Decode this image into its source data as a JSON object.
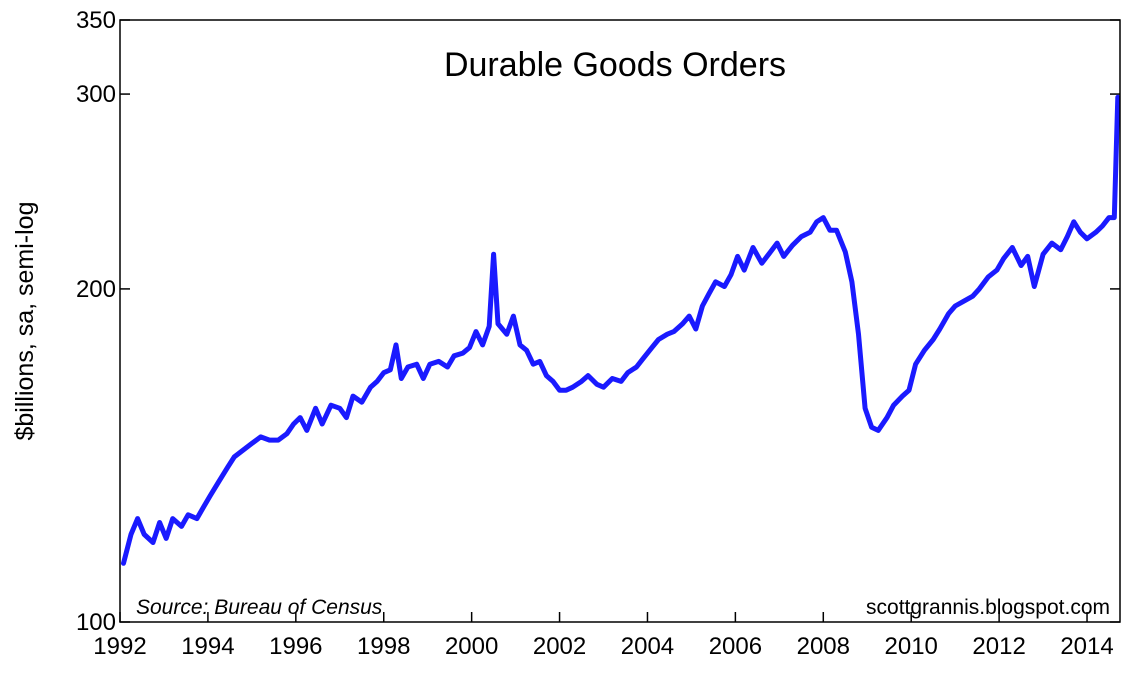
{
  "chart_data": {
    "type": "line",
    "title": "Durable Goods Orders",
    "xlabel": "",
    "ylabel": "$billions, sa, semi-log",
    "yscale": "log",
    "ylim": [
      100,
      350
    ],
    "xlim": [
      1992.0,
      2014.75
    ],
    "x_tick_labels": [
      "1992",
      "1994",
      "1996",
      "1998",
      "2000",
      "2002",
      "2004",
      "2006",
      "2008",
      "2010",
      "2012",
      "2014"
    ],
    "y_tick_labels": [
      "100",
      "200",
      "300",
      "350"
    ],
    "source": "Source:  Bureau of Census",
    "credit": "scottgrannis.blogspot.com",
    "line_color": "#1a1aff",
    "series": [
      {
        "name": "Durable Goods Orders",
        "points": [
          [
            1992.08,
            113
          ],
          [
            1992.25,
            120
          ],
          [
            1992.4,
            124
          ],
          [
            1992.55,
            120
          ],
          [
            1992.75,
            118
          ],
          [
            1992.9,
            123
          ],
          [
            1993.05,
            119
          ],
          [
            1993.2,
            124
          ],
          [
            1993.4,
            122
          ],
          [
            1993.55,
            125
          ],
          [
            1993.75,
            124
          ],
          [
            1993.9,
            127
          ],
          [
            1994.05,
            130
          ],
          [
            1994.25,
            134
          ],
          [
            1994.45,
            138
          ],
          [
            1994.6,
            141
          ],
          [
            1994.8,
            143
          ],
          [
            1995.0,
            145
          ],
          [
            1995.2,
            147
          ],
          [
            1995.4,
            146
          ],
          [
            1995.6,
            146
          ],
          [
            1995.8,
            148
          ],
          [
            1995.95,
            151
          ],
          [
            1996.1,
            153
          ],
          [
            1996.25,
            149
          ],
          [
            1996.45,
            156
          ],
          [
            1996.6,
            151
          ],
          [
            1996.8,
            157
          ],
          [
            1997.0,
            156
          ],
          [
            1997.15,
            153
          ],
          [
            1997.3,
            160
          ],
          [
            1997.5,
            158
          ],
          [
            1997.7,
            163
          ],
          [
            1997.85,
            165
          ],
          [
            1998.0,
            168
          ],
          [
            1998.15,
            169
          ],
          [
            1998.28,
            178
          ],
          [
            1998.4,
            166
          ],
          [
            1998.55,
            170
          ],
          [
            1998.75,
            171
          ],
          [
            1998.9,
            166
          ],
          [
            1999.05,
            171
          ],
          [
            1999.25,
            172
          ],
          [
            1999.45,
            170
          ],
          [
            1999.6,
            174
          ],
          [
            1999.8,
            175
          ],
          [
            1999.95,
            177
          ],
          [
            2000.1,
            183
          ],
          [
            2000.25,
            178
          ],
          [
            2000.4,
            185
          ],
          [
            2000.5,
            215
          ],
          [
            2000.6,
            186
          ],
          [
            2000.8,
            182
          ],
          [
            2000.95,
            189
          ],
          [
            2001.1,
            178
          ],
          [
            2001.25,
            176
          ],
          [
            2001.4,
            171
          ],
          [
            2001.55,
            172
          ],
          [
            2001.7,
            167
          ],
          [
            2001.85,
            165
          ],
          [
            2002.0,
            162
          ],
          [
            2002.15,
            162
          ],
          [
            2002.3,
            163
          ],
          [
            2002.5,
            165
          ],
          [
            2002.65,
            167
          ],
          [
            2002.85,
            164
          ],
          [
            2003.0,
            163
          ],
          [
            2003.2,
            166
          ],
          [
            2003.4,
            165
          ],
          [
            2003.55,
            168
          ],
          [
            2003.75,
            170
          ],
          [
            2003.9,
            173
          ],
          [
            2004.1,
            177
          ],
          [
            2004.25,
            180
          ],
          [
            2004.45,
            182
          ],
          [
            2004.6,
            183
          ],
          [
            2004.8,
            186
          ],
          [
            2004.95,
            189
          ],
          [
            2005.1,
            184
          ],
          [
            2005.25,
            193
          ],
          [
            2005.4,
            198
          ],
          [
            2005.55,
            203
          ],
          [
            2005.75,
            201
          ],
          [
            2005.9,
            206
          ],
          [
            2006.05,
            214
          ],
          [
            2006.2,
            208
          ],
          [
            2006.4,
            218
          ],
          [
            2006.6,
            211
          ],
          [
            2006.8,
            216
          ],
          [
            2006.95,
            220
          ],
          [
            2007.1,
            214
          ],
          [
            2007.3,
            219
          ],
          [
            2007.5,
            223
          ],
          [
            2007.7,
            225
          ],
          [
            2007.85,
            230
          ],
          [
            2008.0,
            232
          ],
          [
            2008.15,
            226
          ],
          [
            2008.3,
            226
          ],
          [
            2008.5,
            216
          ],
          [
            2008.65,
            203
          ],
          [
            2008.8,
            182
          ],
          [
            2008.95,
            156
          ],
          [
            2009.1,
            150
          ],
          [
            2009.25,
            149
          ],
          [
            2009.45,
            153
          ],
          [
            2009.6,
            157
          ],
          [
            2009.8,
            160
          ],
          [
            2009.95,
            162
          ],
          [
            2010.1,
            171
          ],
          [
            2010.3,
            176
          ],
          [
            2010.5,
            180
          ],
          [
            2010.65,
            184
          ],
          [
            2010.85,
            190
          ],
          [
            2011.0,
            193
          ],
          [
            2011.2,
            195
          ],
          [
            2011.4,
            197
          ],
          [
            2011.55,
            200
          ],
          [
            2011.75,
            205
          ],
          [
            2011.95,
            208
          ],
          [
            2012.1,
            213
          ],
          [
            2012.3,
            218
          ],
          [
            2012.5,
            210
          ],
          [
            2012.65,
            214
          ],
          [
            2012.8,
            201
          ],
          [
            2013.0,
            215
          ],
          [
            2013.2,
            220
          ],
          [
            2013.4,
            217
          ],
          [
            2013.55,
            223
          ],
          [
            2013.7,
            230
          ],
          [
            2013.85,
            225
          ],
          [
            2014.0,
            222
          ],
          [
            2014.2,
            225
          ],
          [
            2014.35,
            228
          ],
          [
            2014.5,
            232
          ],
          [
            2014.62,
            232
          ],
          [
            2014.7,
            298
          ]
        ]
      }
    ]
  }
}
